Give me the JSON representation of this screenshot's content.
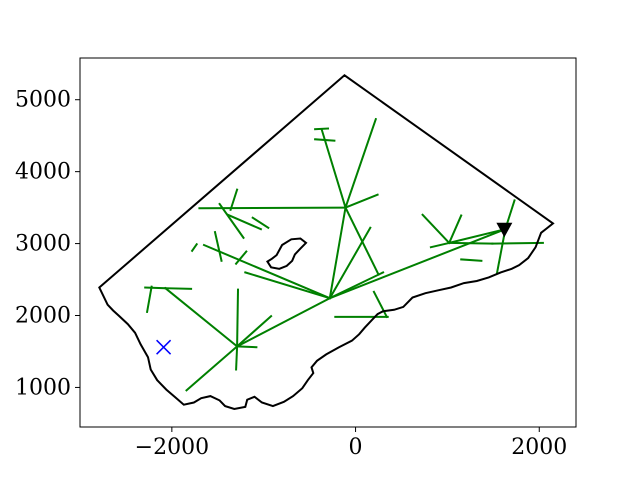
{
  "chart_data": {
    "type": "line",
    "title": "",
    "xlabel": "",
    "ylabel": "",
    "xlim": [
      -3000,
      2400
    ],
    "ylim": [
      450,
      5580
    ],
    "x_ticks": [
      {
        "value": -2000,
        "label": "−2000"
      },
      {
        "value": 0,
        "label": "0"
      },
      {
        "value": 2000,
        "label": "2000"
      }
    ],
    "y_ticks": [
      {
        "value": 1000,
        "label": "1000"
      },
      {
        "value": 2000,
        "label": "2000"
      },
      {
        "value": 3000,
        "label": "3000"
      },
      {
        "value": 4000,
        "label": "4000"
      },
      {
        "value": 5000,
        "label": "5000"
      }
    ],
    "grid": false,
    "colors": {
      "boundary": "#000000",
      "network": "#008000",
      "cross": "#0000ff",
      "triangle": "#000000"
    },
    "boundary": [
      [
        -2790,
        2390
      ],
      [
        -120,
        5340
      ],
      [
        2150,
        3280
      ],
      [
        2080,
        3210
      ],
      [
        2020,
        3150
      ],
      [
        1960,
        2950
      ],
      [
        1880,
        2800
      ],
      [
        1780,
        2700
      ],
      [
        1700,
        2650
      ],
      [
        1580,
        2600
      ],
      [
        1450,
        2530
      ],
      [
        1320,
        2480
      ],
      [
        1180,
        2450
      ],
      [
        1040,
        2390
      ],
      [
        900,
        2350
      ],
      [
        760,
        2310
      ],
      [
        620,
        2250
      ],
      [
        520,
        2120
      ],
      [
        420,
        2080
      ],
      [
        300,
        2060
      ],
      [
        240,
        2020
      ],
      [
        180,
        1940
      ],
      [
        100,
        1830
      ],
      [
        40,
        1740
      ],
      [
        -40,
        1650
      ],
      [
        -180,
        1560
      ],
      [
        -320,
        1460
      ],
      [
        -420,
        1370
      ],
      [
        -480,
        1280
      ],
      [
        -460,
        1200
      ],
      [
        -520,
        1100
      ],
      [
        -580,
        990
      ],
      [
        -680,
        880
      ],
      [
        -780,
        800
      ],
      [
        -900,
        740
      ],
      [
        -1020,
        790
      ],
      [
        -1100,
        870
      ],
      [
        -1180,
        830
      ],
      [
        -1200,
        730
      ],
      [
        -1320,
        700
      ],
      [
        -1420,
        740
      ],
      [
        -1480,
        820
      ],
      [
        -1580,
        880
      ],
      [
        -1680,
        850
      ],
      [
        -1760,
        790
      ],
      [
        -1870,
        760
      ],
      [
        -1960,
        860
      ],
      [
        -2060,
        970
      ],
      [
        -2160,
        1100
      ],
      [
        -2230,
        1250
      ],
      [
        -2260,
        1420
      ],
      [
        -2340,
        1600
      ],
      [
        -2400,
        1760
      ],
      [
        -2480,
        1880
      ],
      [
        -2580,
        2000
      ],
      [
        -2640,
        2070
      ],
      [
        -2700,
        2150
      ],
      [
        -2790,
        2390
      ]
    ],
    "hole": [
      [
        -860,
        2840
      ],
      [
        -800,
        2980
      ],
      [
        -700,
        3060
      ],
      [
        -600,
        3070
      ],
      [
        -540,
        3010
      ],
      [
        -600,
        2930
      ],
      [
        -660,
        2850
      ],
      [
        -690,
        2760
      ],
      [
        -750,
        2690
      ],
      [
        -830,
        2650
      ],
      [
        -920,
        2670
      ],
      [
        -960,
        2750
      ],
      [
        -910,
        2790
      ],
      [
        -860,
        2840
      ]
    ],
    "network": [
      [
        [
          -2070,
          2380
        ],
        [
          -1290,
          1570
        ]
      ],
      [
        [
          -1290,
          1570
        ],
        [
          -1840,
          960
        ]
      ],
      [
        [
          -1290,
          1570
        ],
        [
          -280,
          2240
        ]
      ],
      [
        [
          -280,
          2240
        ],
        [
          1630,
          3200
        ]
      ],
      [
        [
          -280,
          2240
        ],
        [
          -110,
          3500
        ]
      ],
      [
        [
          -110,
          3500
        ],
        [
          -370,
          4590
        ]
      ],
      [
        [
          -110,
          3500
        ],
        [
          220,
          4730
        ]
      ],
      [
        [
          -110,
          3500
        ],
        [
          -1700,
          3490
        ]
      ],
      [
        [
          -110,
          3500
        ],
        [
          240,
          3680
        ]
      ],
      [
        [
          -280,
          2240
        ],
        [
          -1650,
          2980
        ]
      ],
      [
        [
          -280,
          2240
        ],
        [
          160,
          3220
        ]
      ],
      [
        [
          -280,
          2240
        ],
        [
          -1200,
          2600
        ]
      ],
      [
        [
          -110,
          3500
        ],
        [
          250,
          2570
        ]
      ],
      [
        [
          -1290,
          1570
        ],
        [
          -1280,
          2360
        ]
      ],
      [
        [
          -1290,
          1570
        ],
        [
          -1080,
          1560
        ]
      ],
      [
        [
          -1290,
          1570
        ],
        [
          -1300,
          1250
        ]
      ],
      [
        [
          -2070,
          2380
        ],
        [
          -2290,
          2390
        ]
      ],
      [
        [
          -2070,
          2380
        ],
        [
          -1790,
          2370
        ]
      ],
      [
        [
          -1290,
          1570
        ],
        [
          -920,
          1990
        ]
      ],
      [
        [
          1630,
          3200
        ],
        [
          1020,
          3010
        ]
      ],
      [
        [
          1630,
          3200
        ],
        [
          1540,
          2590
        ]
      ],
      [
        [
          1630,
          3200
        ],
        [
          1730,
          3600
        ]
      ],
      [
        [
          1020,
          3010
        ],
        [
          730,
          3400
        ]
      ],
      [
        [
          1020,
          3010
        ],
        [
          1490,
          3000
        ]
      ],
      [
        [
          1490,
          3000
        ],
        [
          2040,
          3010
        ]
      ],
      [
        [
          1020,
          3010
        ],
        [
          820,
          2950
        ]
      ],
      [
        [
          1020,
          3010
        ],
        [
          1150,
          3390
        ]
      ],
      [
        [
          -1480,
          3550
        ],
        [
          -1220,
          3080
        ]
      ],
      [
        [
          -1290,
          3750
        ],
        [
          -1360,
          3470
        ]
      ],
      [
        [
          -1390,
          3400
        ],
        [
          -1030,
          3200
        ]
      ],
      [
        [
          -950,
          3220
        ],
        [
          -1120,
          3360
        ]
      ],
      [
        [
          -1530,
          3160
        ],
        [
          -1460,
          2760
        ]
      ],
      [
        [
          -1300,
          2720
        ],
        [
          -1190,
          2890
        ]
      ],
      [
        [
          -440,
          4450
        ],
        [
          -230,
          4430
        ]
      ],
      [
        [
          -300,
          4600
        ],
        [
          -440,
          4590
        ]
      ],
      [
        [
          -1780,
          2900
        ],
        [
          -1730,
          2990
        ]
      ],
      [
        [
          200,
          2330
        ],
        [
          340,
          1980
        ]
      ],
      [
        [
          -220,
          1980
        ],
        [
          350,
          1980
        ]
      ],
      [
        [
          -280,
          2240
        ],
        [
          300,
          2600
        ]
      ],
      [
        [
          1150,
          2780
        ],
        [
          1370,
          2760
        ]
      ],
      [
        [
          -2270,
          2050
        ],
        [
          -2220,
          2400
        ]
      ]
    ],
    "markers": {
      "cross": [
        -2090,
        1560
      ],
      "triangle": [
        1620,
        3200
      ]
    }
  }
}
